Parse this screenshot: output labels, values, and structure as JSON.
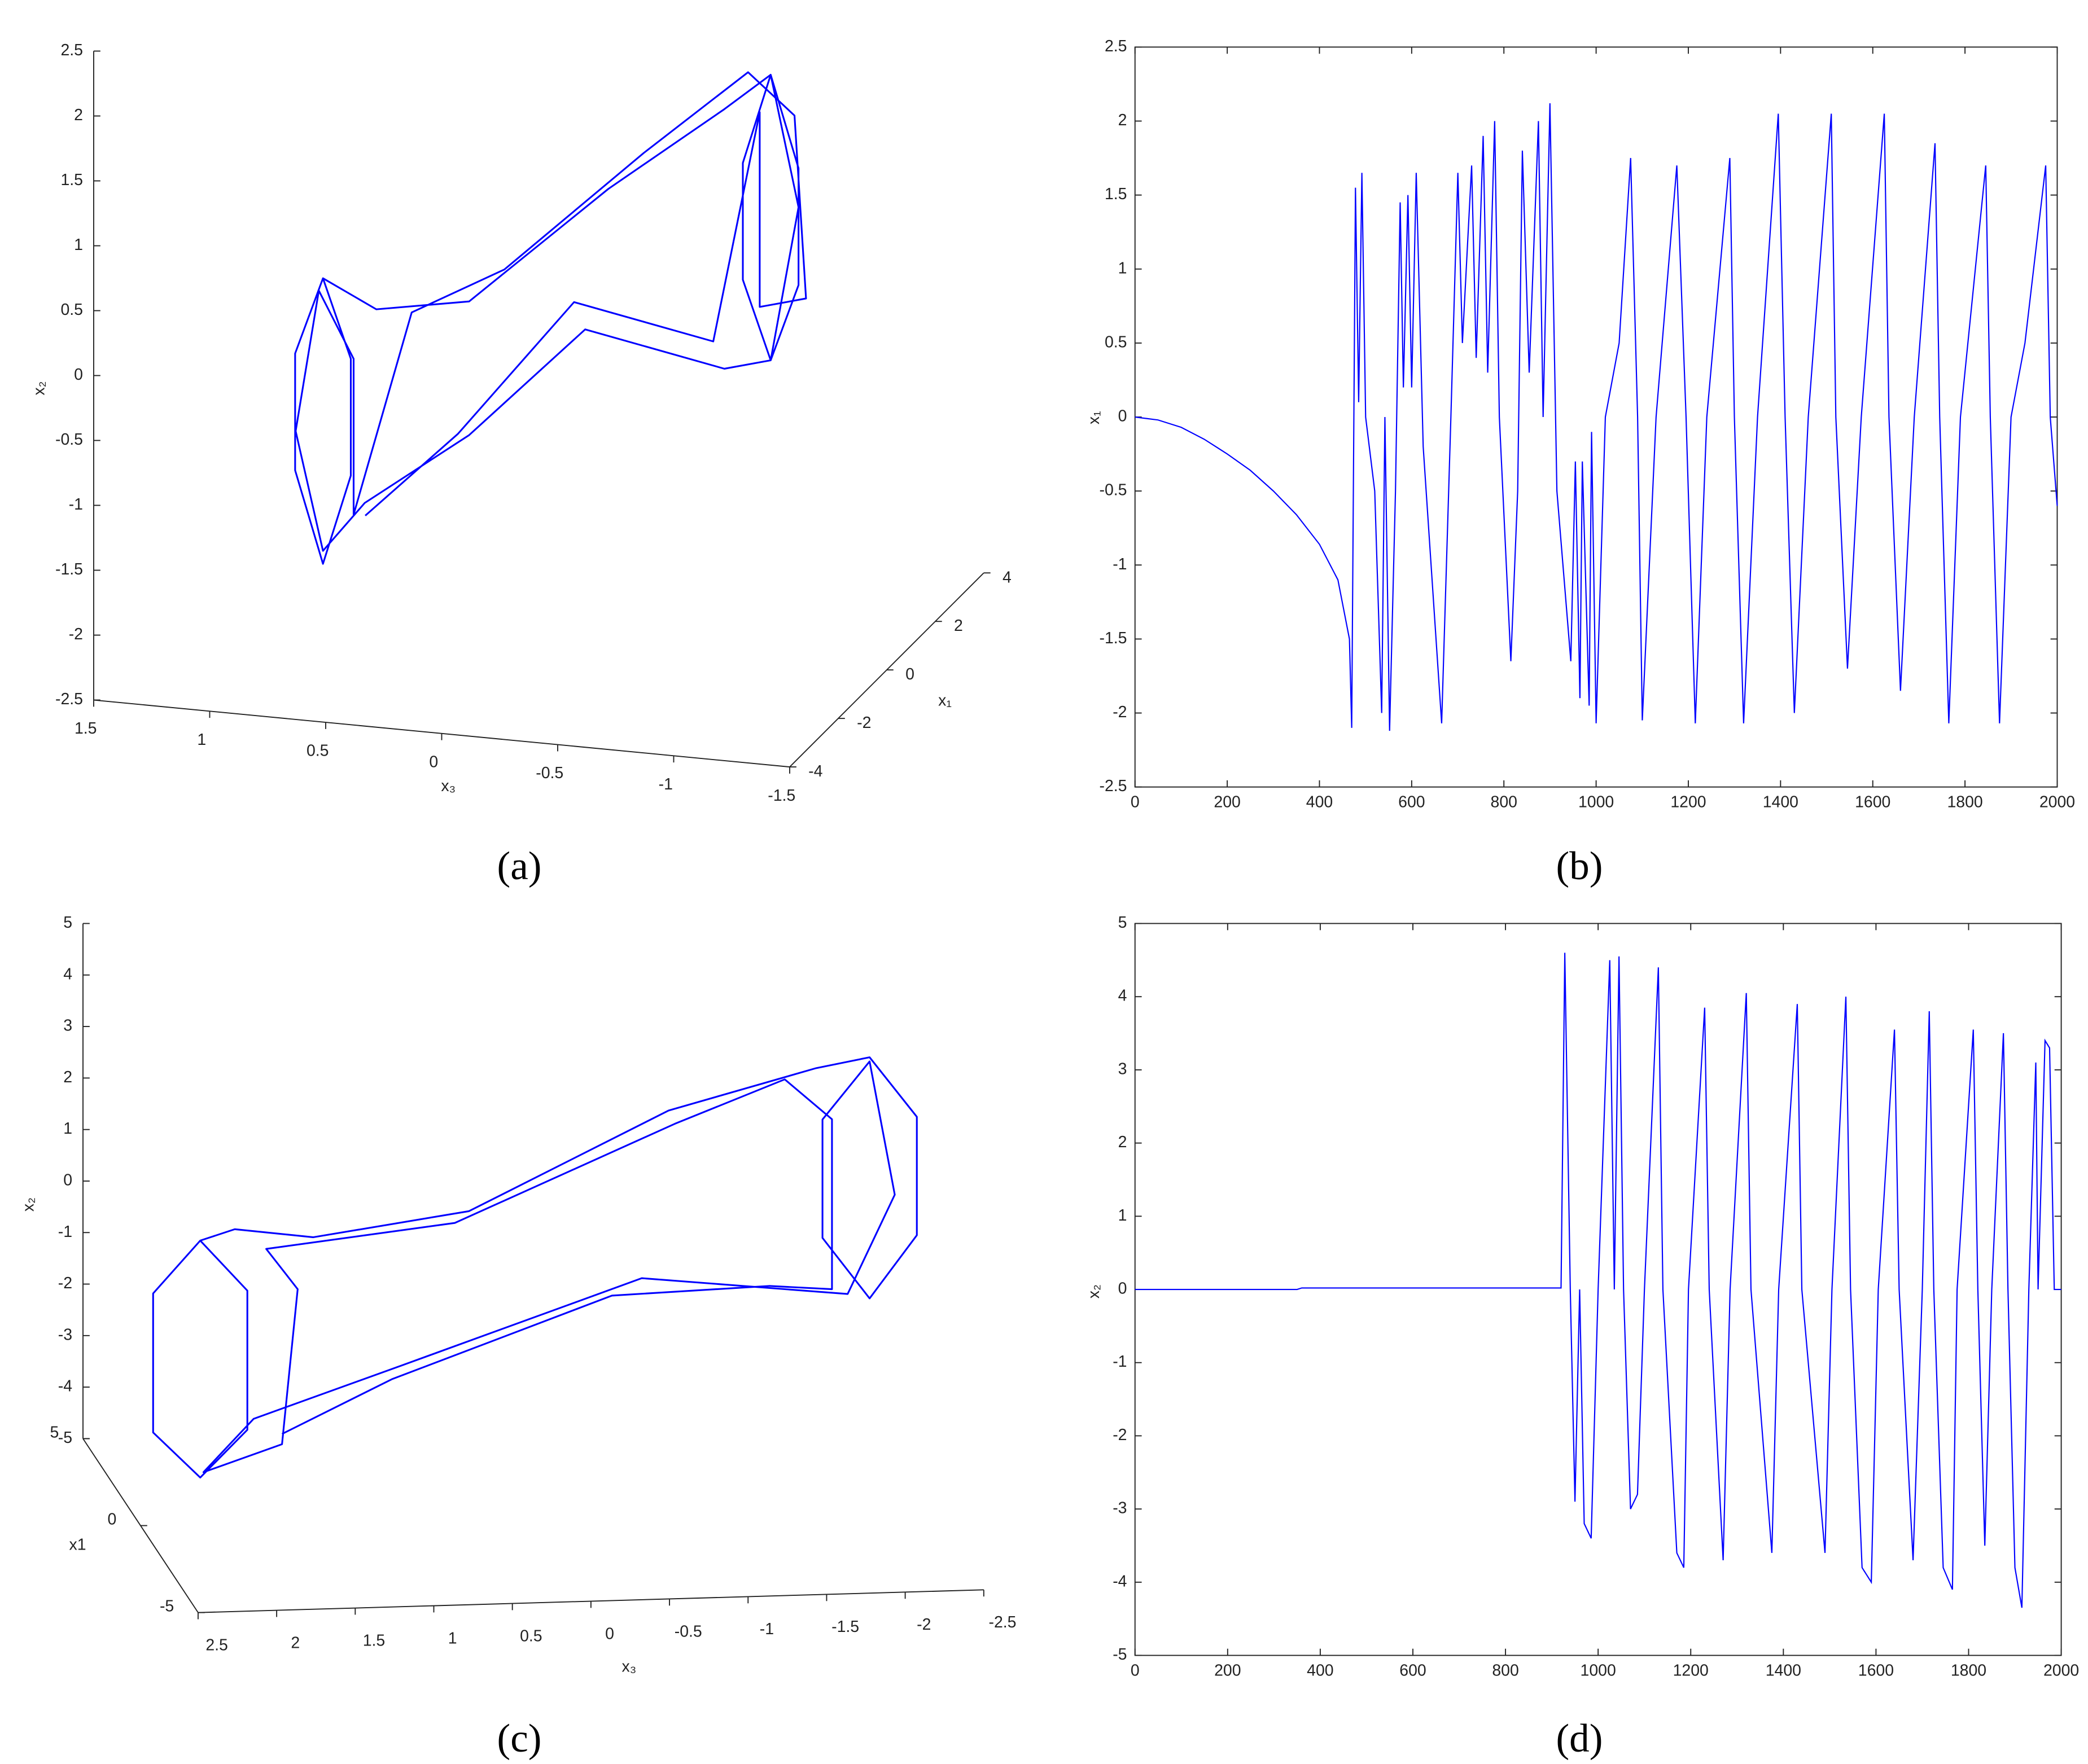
{
  "chart_data": [
    {
      "type": "line3d",
      "caption": "(a)",
      "xlabel": "x₃",
      "ylabel": "x₁",
      "zlabel": "x₂",
      "xlim": [
        1.5,
        -1.5
      ],
      "xticks": [
        1.5,
        1,
        0.5,
        0,
        -0.5,
        -1,
        -1.5
      ],
      "ylim": [
        -4,
        4
      ],
      "yticks": [
        -4,
        -2,
        0,
        2,
        4
      ],
      "zlim": [
        -2.5,
        2.5
      ],
      "zticks": [
        -2.5,
        -2,
        -1.5,
        -1,
        -0.5,
        0,
        0.5,
        1,
        1.5,
        2,
        2.5
      ],
      "series": [
        {
          "color": "#0000ff",
          "x": [
            0.93,
            1.05,
            1.05,
            0.93,
            0.81,
            0.81,
            0.93,
            0.7,
            0.3,
            -0.3,
            -0.8,
            -1.0,
            -1.12,
            -1.12,
            -1.0,
            -0.88,
            -0.88,
            -1.0,
            -1.12,
            -1.0,
            -0.8,
            -0.2,
            0.3,
            0.75,
            0.93,
            1.1,
            1.0,
            0.85,
            0.85,
            0.6,
            0.2,
            -0.4,
            -0.85,
            -1.05,
            -1.1,
            -0.9,
            -0.9,
            -0.7,
            -0.1,
            0.4,
            0.8
          ],
          "y": [
            0,
            0,
            0,
            0,
            0,
            0,
            0,
            0,
            0,
            0,
            0,
            0,
            0,
            0,
            0,
            0,
            0,
            0,
            0,
            0,
            0,
            0,
            0,
            0,
            0,
            0.5,
            0.5,
            0.5,
            0.5,
            0.5,
            0.5,
            0.5,
            0.5,
            0.5,
            0.5,
            0.5,
            0.5,
            0.5,
            0.5,
            0.5,
            0.5
          ],
          "z": [
            0.1,
            -0.5,
            -1.4,
            -2.1,
            -1.4,
            -0.5,
            0.1,
            -0.1,
            0.03,
            1.0,
            1.7,
            2.0,
            1.3,
            0.4,
            -0.2,
            0.4,
            1.3,
            2.0,
            1.0,
            -0.2,
            -0.3,
            -0.1,
            -1.0,
            -1.6,
            -2.0,
            -1.2,
            -0.1,
            -0.6,
            -1.8,
            -0.2,
            0.2,
            1.2,
            1.9,
            1.6,
            0.2,
            0.1,
            1.6,
            -0.2,
            0,
            -1.1,
            -1.8
          ]
        }
      ]
    },
    {
      "type": "line",
      "caption": "(b)",
      "ylabel": "x₁",
      "xlim": [
        0,
        2000
      ],
      "xticks": [
        0,
        200,
        400,
        600,
        800,
        1000,
        1200,
        1400,
        1600,
        1800,
        2000
      ],
      "ylim": [
        -2.5,
        2.5
      ],
      "yticks": [
        -2.5,
        -2,
        -1.5,
        -1,
        -0.5,
        0,
        0.5,
        1,
        1.5,
        2,
        2.5
      ],
      "x": [
        0,
        50,
        100,
        150,
        200,
        250,
        300,
        350,
        400,
        440,
        465,
        470,
        478,
        485,
        492,
        500,
        520,
        535,
        542,
        552,
        565,
        575,
        582,
        592,
        600,
        610,
        625,
        665,
        685,
        700,
        710,
        730,
        740,
        755,
        765,
        780,
        790,
        815,
        830,
        840,
        855,
        875,
        885,
        900,
        915,
        945,
        955,
        965,
        970,
        985,
        990,
        1000,
        1020,
        1050,
        1075,
        1090,
        1100,
        1130,
        1175,
        1195,
        1215,
        1240,
        1290,
        1300,
        1320,
        1350,
        1395,
        1410,
        1430,
        1460,
        1510,
        1520,
        1545,
        1575,
        1625,
        1635,
        1660,
        1690,
        1735,
        1745,
        1765,
        1790,
        1845,
        1855,
        1875,
        1900,
        1930,
        1975,
        1985,
        2000
      ],
      "series": [
        {
          "color": "#0000ff",
          "values": [
            0,
            -0.02,
            -0.07,
            -0.15,
            -0.25,
            -0.36,
            -0.5,
            -0.66,
            -0.86,
            -1.1,
            -1.5,
            -2.1,
            1.55,
            0.1,
            1.65,
            0,
            -0.5,
            -2.0,
            0,
            -2.12,
            -0.5,
            1.45,
            0.2,
            1.5,
            0.2,
            1.65,
            -0.2,
            -2.07,
            0,
            1.65,
            0.5,
            1.7,
            0.4,
            1.9,
            0.3,
            2.0,
            0,
            -1.65,
            -0.5,
            1.8,
            0.3,
            2.0,
            0,
            2.12,
            -0.5,
            -1.65,
            -0.3,
            -1.9,
            -0.3,
            -1.95,
            -0.1,
            -2.07,
            0,
            0.5,
            1.75,
            0,
            -2.05,
            0,
            1.7,
            0,
            -2.07,
            0,
            1.75,
            0,
            -2.07,
            0,
            2.05,
            0,
            -2.0,
            0,
            2.05,
            0,
            -1.7,
            0,
            2.05,
            0,
            -1.85,
            0,
            1.85,
            0,
            -2.07,
            0,
            1.7,
            0,
            -2.07,
            0,
            0.5,
            1.7,
            0,
            -0.6
          ]
        }
      ]
    },
    {
      "type": "line3d",
      "caption": "(c)",
      "xlabel": "x₃",
      "ylabel": "x1",
      "zlabel": "x₂",
      "xlim": [
        2.5,
        -2.5
      ],
      "xticks": [
        2.5,
        2,
        1.5,
        1,
        0.5,
        0,
        -0.5,
        -1,
        -1.5,
        -2,
        -2.5
      ],
      "ylim": [
        -5,
        5
      ],
      "yticks": [
        -5,
        0,
        5
      ],
      "zlim": [
        -5,
        5
      ],
      "zticks": [
        -5,
        -4,
        -3,
        -2,
        -1,
        0,
        1,
        2,
        3,
        4,
        5
      ],
      "series": [
        {
          "color": "#0000ff",
          "x": [
            2.12,
            1.82,
            1.82,
            2.12,
            2.42,
            2.42,
            2.12,
            1.9,
            1.4,
            0.41,
            -0.86,
            -1.8,
            -2.14,
            -2.44,
            -2.44,
            -2.14,
            -1.84,
            -1.84,
            -2.14,
            -2.3,
            -2.0,
            -0.69,
            0.84,
            1.78,
            2.1,
            1.6,
            1.5,
            1.7,
            0.5,
            -0.9,
            -1.6,
            -1.9,
            -1.9,
            -1.5,
            -0.5,
            0.9,
            1.6
          ],
          "y": [
            0,
            0,
            0,
            0,
            0,
            0,
            0,
            0,
            0,
            0,
            0,
            0,
            0,
            0,
            0,
            0,
            0,
            0,
            0,
            0,
            0,
            0,
            0,
            0,
            0,
            0,
            0,
            0,
            0,
            0,
            0,
            0,
            0,
            0,
            0,
            0,
            0
          ],
          "z": [
            0.5,
            -0.5,
            -3.2,
            -4.1,
            -3.2,
            -0.5,
            0.5,
            0.7,
            0.5,
            0.92,
            2.76,
            3.5,
            3.68,
            2.5,
            0.2,
            -1.0,
            0.2,
            2.5,
            3.6,
            1.0,
            -0.9,
            -0.48,
            -2.04,
            -2.99,
            -4.0,
            -3.5,
            -0.5,
            0.3,
            0.7,
            2.5,
            3.3,
            2.5,
            -0.8,
            -0.7,
            -0.8,
            -2.3,
            -3.3
          ]
        }
      ]
    },
    {
      "type": "line",
      "caption": "(d)",
      "ylabel": "x₂",
      "xlim": [
        0,
        2000
      ],
      "xticks": [
        0,
        200,
        400,
        600,
        800,
        1000,
        1200,
        1400,
        1600,
        1800,
        2000
      ],
      "ylim": [
        -5,
        5
      ],
      "yticks": [
        -5,
        -4,
        -3,
        -2,
        -1,
        0,
        1,
        2,
        3,
        4,
        5
      ],
      "x": [
        0,
        350,
        360,
        920,
        928,
        940,
        950,
        960,
        970,
        985,
        1000,
        1025,
        1035,
        1045,
        1055,
        1070,
        1085,
        1100,
        1130,
        1140,
        1170,
        1185,
        1195,
        1230,
        1240,
        1270,
        1285,
        1320,
        1330,
        1375,
        1390,
        1430,
        1440,
        1490,
        1505,
        1535,
        1545,
        1570,
        1590,
        1605,
        1640,
        1650,
        1680,
        1700,
        1715,
        1725,
        1745,
        1765,
        1775,
        1810,
        1820,
        1835,
        1850,
        1875,
        1885,
        1900,
        1915,
        1930,
        1945,
        1950,
        1965,
        1975,
        1985,
        2000
      ],
      "series": [
        {
          "color": "#0000ff",
          "values": [
            0,
            0,
            0.02,
            0.02,
            4.6,
            0,
            -2.9,
            0,
            -3.2,
            -3.4,
            0,
            4.5,
            0,
            4.55,
            0,
            -3.0,
            -2.8,
            0,
            4.4,
            0,
            -3.6,
            -3.8,
            0,
            3.85,
            0,
            -3.7,
            0,
            4.05,
            0,
            -3.6,
            0,
            3.9,
            0,
            -3.6,
            0,
            4.0,
            0,
            -3.8,
            -4.0,
            0,
            3.55,
            0,
            -3.7,
            0,
            3.8,
            0,
            -3.8,
            -4.1,
            0,
            3.55,
            0,
            -3.5,
            0,
            3.5,
            0,
            -3.8,
            -4.35,
            0,
            3.1,
            0,
            3.4,
            3.3,
            0,
            0
          ]
        }
      ]
    }
  ]
}
